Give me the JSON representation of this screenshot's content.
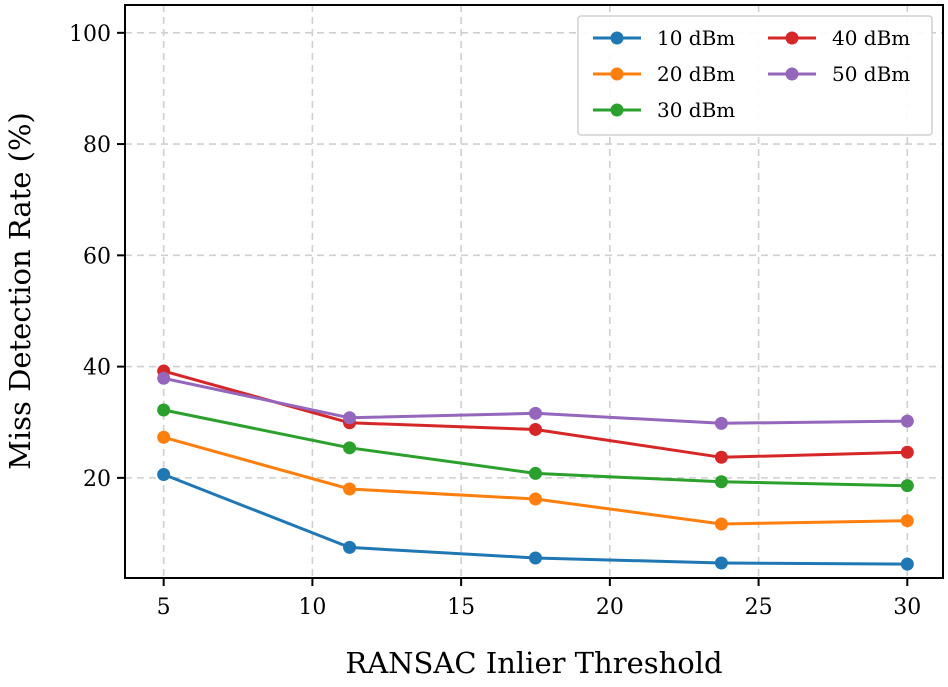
{
  "chart_data": {
    "type": "line",
    "title": "",
    "xlabel": "RANSAC Inlier Threshold",
    "ylabel": "Miss Detection Rate (%)",
    "xlim": [
      3.7,
      31.2
    ],
    "ylim": [
      2,
      105
    ],
    "xticks": [
      5,
      10,
      15,
      20,
      25,
      30
    ],
    "yticks": [
      20,
      40,
      60,
      80,
      100
    ],
    "grid": true,
    "legend_position": "top-right",
    "x": [
      5,
      11.25,
      17.5,
      23.75,
      30
    ],
    "series": [
      {
        "name": "10 dBm",
        "color": "#1f77b4",
        "values": [
          20.6,
          7.5,
          5.6,
          4.7,
          4.5
        ]
      },
      {
        "name": "20 dBm",
        "color": "#ff7f0e",
        "values": [
          27.3,
          18.0,
          16.2,
          11.7,
          12.3
        ]
      },
      {
        "name": "30 dBm",
        "color": "#2ca02c",
        "values": [
          32.2,
          25.4,
          20.8,
          19.3,
          18.6
        ]
      },
      {
        "name": "40 dBm",
        "color": "#d62728",
        "values": [
          39.2,
          29.9,
          28.7,
          23.7,
          24.6
        ]
      },
      {
        "name": "50 dBm",
        "color": "#9467bd",
        "values": [
          37.9,
          30.8,
          31.6,
          29.8,
          30.2
        ]
      }
    ]
  }
}
